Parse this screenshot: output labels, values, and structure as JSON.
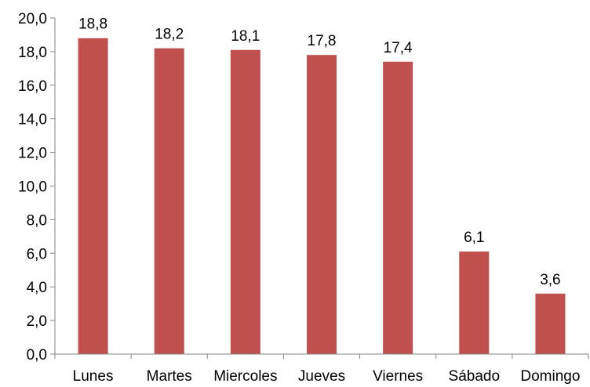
{
  "chart_data": {
    "type": "bar",
    "title": "",
    "xlabel": "",
    "ylabel": "",
    "categories": [
      "Lunes",
      "Martes",
      "Miercoles",
      "Jueves",
      "Viernes",
      "Sábado",
      "Domingo"
    ],
    "values": [
      18.8,
      18.2,
      18.1,
      17.8,
      17.4,
      6.1,
      3.6
    ],
    "data_labels": [
      "18,8",
      "18,2",
      "18,1",
      "17,8",
      "17,4",
      "6,1",
      "3,6"
    ],
    "y_ticks": [
      "0,0",
      "2,0",
      "4,0",
      "6,0",
      "8,0",
      "10,0",
      "12,0",
      "14,0",
      "16,0",
      "18,0",
      "20,0"
    ],
    "ylim": [
      0,
      20
    ],
    "grid": false,
    "legend": "none",
    "bar_color": "#C0504D",
    "axis_color": "#868686"
  }
}
